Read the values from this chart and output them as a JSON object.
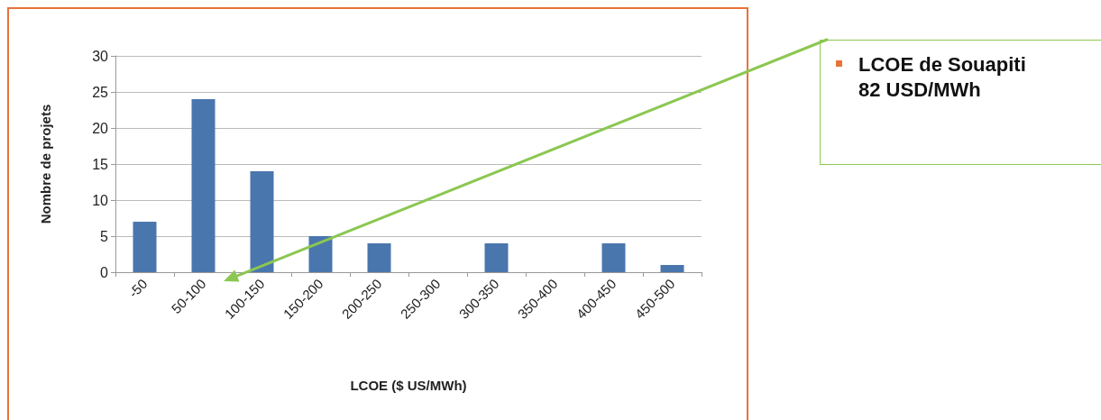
{
  "chart_data": {
    "type": "bar",
    "xlabel": "LCOE ($ US/MWh)",
    "ylabel": "Nombre de projets",
    "categories": [
      "-50",
      "50-100",
      "100-150",
      "150-200",
      "200-250",
      "250-300",
      "300-350",
      "350-400",
      "400-450",
      "450-500"
    ],
    "values": [
      7,
      24,
      14,
      5,
      4,
      0,
      4,
      0,
      4,
      1
    ],
    "color": "#4a76ae",
    "ylim": [
      0,
      30
    ],
    "yticks": [
      0,
      5,
      10,
      15,
      20,
      25,
      30
    ],
    "grid": "y",
    "annotations": [
      "LCOE de Souapiti 82 USD/MWh"
    ]
  }
}
